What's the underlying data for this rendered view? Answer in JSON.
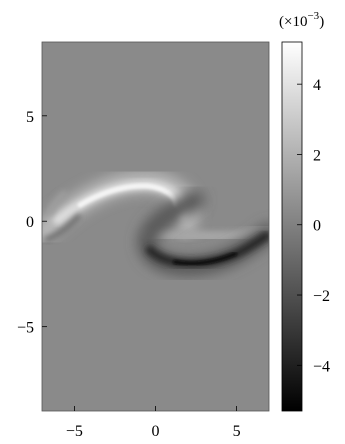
{
  "chart_data": {
    "type": "heatmap",
    "title": "",
    "xlabel": "",
    "ylabel": "",
    "xlim": [
      -7,
      7
    ],
    "ylim": [
      -9,
      8.5
    ],
    "x_ticks": [
      {
        "value": -5,
        "label": "−5"
      },
      {
        "value": 0,
        "label": "0"
      },
      {
        "value": 5,
        "label": "5"
      }
    ],
    "y_ticks": [
      {
        "value": 5,
        "label": "5"
      },
      {
        "value": 0,
        "label": "0"
      },
      {
        "value": -5,
        "label": "−5"
      }
    ],
    "colorbar": {
      "exponent_label": "(×10",
      "exponent_power": "−3",
      "exponent_close": ")",
      "range": [
        -5.3,
        5.2
      ],
      "colormap": "gray",
      "ticks": [
        {
          "value": 4,
          "label": "4"
        },
        {
          "value": 2,
          "label": "2"
        },
        {
          "value": 0,
          "label": "0"
        },
        {
          "value": -2,
          "label": "−2"
        },
        {
          "value": -4,
          "label": "−4"
        }
      ]
    },
    "background_value": 0,
    "features": [
      {
        "name": "positive-band",
        "peak_value": 4.5,
        "description": "upper-left arc of the spiral"
      },
      {
        "name": "negative-band",
        "peak_value": -4.8,
        "description": "lower-right arc of the spiral"
      }
    ]
  }
}
